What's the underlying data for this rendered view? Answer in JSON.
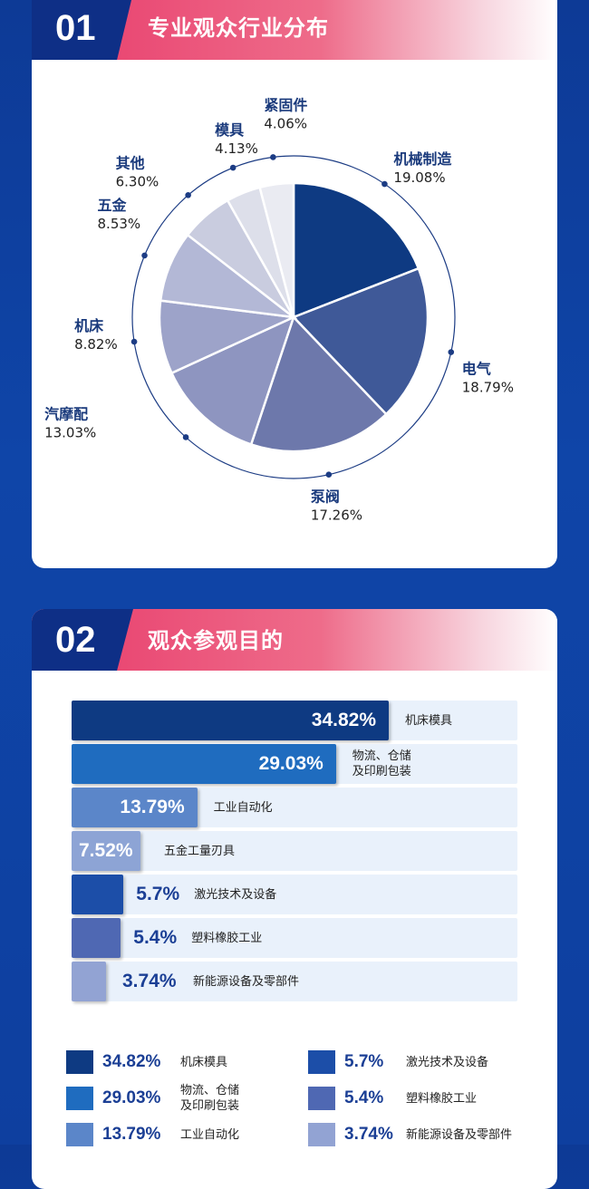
{
  "section1": {
    "number": "01",
    "title": "专业观众行业分布"
  },
  "section2": {
    "number": "02",
    "title": "观众参观目的"
  },
  "chart_data": [
    {
      "type": "pie",
      "categories": [
        "机械制造",
        "电气",
        "泵阀",
        "汽摩配",
        "机床",
        "五金",
        "其他",
        "模具",
        "紧固件"
      ],
      "values": [
        19.08,
        18.79,
        17.26,
        13.03,
        8.82,
        8.53,
        6.3,
        4.13,
        4.06
      ],
      "value_labels": [
        "19.08%",
        "18.79%",
        "17.26%",
        "13.03%",
        "8.82%",
        "8.53%",
        "6.30%",
        "4.13%",
        "4.06%"
      ],
      "colors": [
        "#0e3a82",
        "#3f5998",
        "#6d78ab",
        "#8e95c0",
        "#9da3c9",
        "#b3b8d6",
        "#c9ccdf",
        "#dddfea",
        "#eaebf2"
      ]
    },
    {
      "type": "bar",
      "orientation": "horizontal",
      "categories": [
        "机床模具",
        "物流、仓储\n及印刷包装",
        "工业自动化",
        "五金工量刃具",
        "激光技术及设备",
        "塑料橡胶工业",
        "新能源设备及零部件"
      ],
      "values": [
        34.82,
        29.03,
        13.79,
        7.52,
        5.7,
        5.4,
        3.74
      ],
      "value_labels": [
        "34.82%",
        "29.03%",
        "13.79%",
        "7.52%",
        "5.7%",
        "5.4%",
        "3.74%"
      ],
      "colors": [
        "#0e3a82",
        "#1f6cbf",
        "#5b86c9",
        "#8da4d5",
        "#1c4ea8",
        "#4f68b3",
        "#92a3d3"
      ],
      "legend_items": [
        {
          "value": "34.82%",
          "label": "机床模具",
          "color": "#0e3a82"
        },
        {
          "value": "29.03%",
          "label": "物流、仓储\n及印刷包装",
          "color": "#1f6cbf"
        },
        {
          "value": "13.79%",
          "label": "工业自动化",
          "color": "#5b86c9"
        },
        {
          "value": "5.7%",
          "label": "激光技术及设备",
          "color": "#1c4ea8"
        },
        {
          "value": "5.4%",
          "label": "塑料橡胶工业",
          "color": "#4f68b3"
        },
        {
          "value": "3.74%",
          "label": "新能源设备及零部件",
          "color": "#92a3d3"
        }
      ]
    }
  ]
}
